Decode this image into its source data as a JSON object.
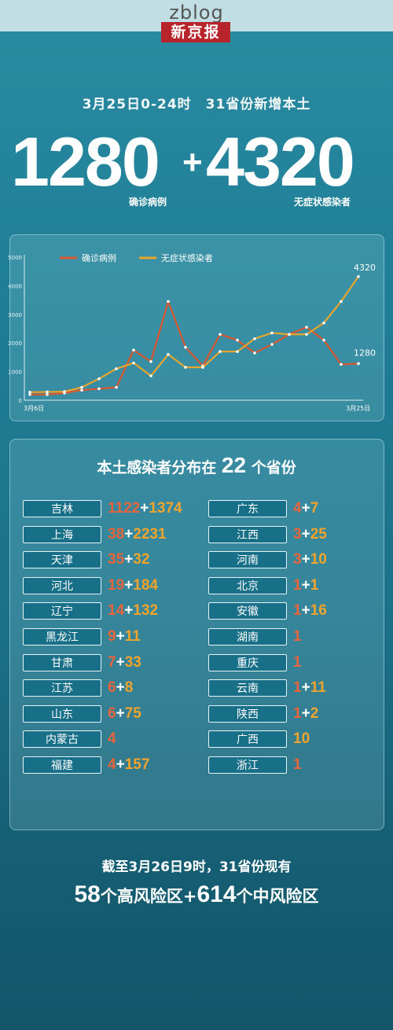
{
  "watermark": "zblog",
  "logo": "新京报",
  "headline": {
    "date": "3月25日0-24时",
    "text": "31省份新增本土"
  },
  "big": {
    "confirmed": "1280",
    "plus": "+",
    "asymptomatic": "4320",
    "confirmed_label": "确诊病例",
    "asymptomatic_label": "无症状感染者"
  },
  "chart_data": {
    "type": "line",
    "x": [
      "3月6日",
      "3月7日",
      "3月8日",
      "3月9日",
      "3月10日",
      "3月11日",
      "3月12日",
      "3月13日",
      "3月14日",
      "3月15日",
      "3月16日",
      "3月17日",
      "3月18日",
      "3月19日",
      "3月20日",
      "3月21日",
      "3月22日",
      "3月23日",
      "3月24日",
      "3月25日"
    ],
    "x_tick_labels": [
      "3月6日",
      "3月25日"
    ],
    "y_ticks": [
      "0",
      "1000",
      "2000",
      "3000",
      "4000",
      "5000"
    ],
    "ylim": [
      0,
      5000
    ],
    "series": [
      {
        "name": "确诊病例",
        "color": "#d8582f",
        "values": [
          200,
          200,
          250,
          350,
          400,
          450,
          1750,
          1350,
          3450,
          1850,
          1200,
          2300,
          2100,
          1650,
          1950,
          2300,
          2550,
          2100,
          1250,
          1280
        ]
      },
      {
        "name": "无症状感染者",
        "color": "#e8a52e",
        "values": [
          280,
          290,
          300,
          450,
          750,
          1100,
          1300,
          850,
          1600,
          1150,
          1150,
          1700,
          1700,
          2150,
          2350,
          2300,
          2300,
          2700,
          3450,
          4320
        ]
      }
    ],
    "end_labels": [
      "4320",
      "1280"
    ],
    "legend": "top-left",
    "grid": false
  },
  "distribution": {
    "title_pre": "本土感染者分布在",
    "count": "22",
    "title_post": "个省份",
    "left": [
      {
        "name": "吉林",
        "confirmed": "1122",
        "asym": "1374"
      },
      {
        "name": "上海",
        "confirmed": "38",
        "asym": "2231"
      },
      {
        "name": "天津",
        "confirmed": "35",
        "asym": "32"
      },
      {
        "name": "河北",
        "confirmed": "19",
        "asym": "184"
      },
      {
        "name": "辽宁",
        "confirmed": "14",
        "asym": "132"
      },
      {
        "name": "黑龙江",
        "confirmed": "9",
        "asym": "11"
      },
      {
        "name": "甘肃",
        "confirmed": "7",
        "asym": "33"
      },
      {
        "name": "江苏",
        "confirmed": "6",
        "asym": "8"
      },
      {
        "name": "山东",
        "confirmed": "6",
        "asym": "75"
      },
      {
        "name": "内蒙古",
        "confirmed": "4",
        "asym": ""
      },
      {
        "name": "福建",
        "confirmed": "4",
        "asym": "157"
      }
    ],
    "right": [
      {
        "name": "广东",
        "confirmed": "4",
        "asym": "7"
      },
      {
        "name": "江西",
        "confirmed": "3",
        "asym": "25"
      },
      {
        "name": "河南",
        "confirmed": "3",
        "asym": "10"
      },
      {
        "name": "北京",
        "confirmed": "1",
        "asym": "1"
      },
      {
        "name": "安徽",
        "confirmed": "1",
        "asym": "16"
      },
      {
        "name": "湖南",
        "confirmed": "1",
        "asym": ""
      },
      {
        "name": "重庆",
        "confirmed": "1",
        "asym": ""
      },
      {
        "name": "云南",
        "confirmed": "1",
        "asym": "11"
      },
      {
        "name": "陕西",
        "confirmed": "1",
        "asym": "2"
      },
      {
        "name": "广西",
        "confirmed": "",
        "asym": "10"
      },
      {
        "name": "浙江",
        "confirmed": "1",
        "asym": ""
      }
    ]
  },
  "footer": {
    "line1": "截至3月26日9时，31省份现有",
    "high": "58",
    "high_label": "个高风险区+",
    "mid": "614",
    "mid_label": "个中风险区"
  }
}
